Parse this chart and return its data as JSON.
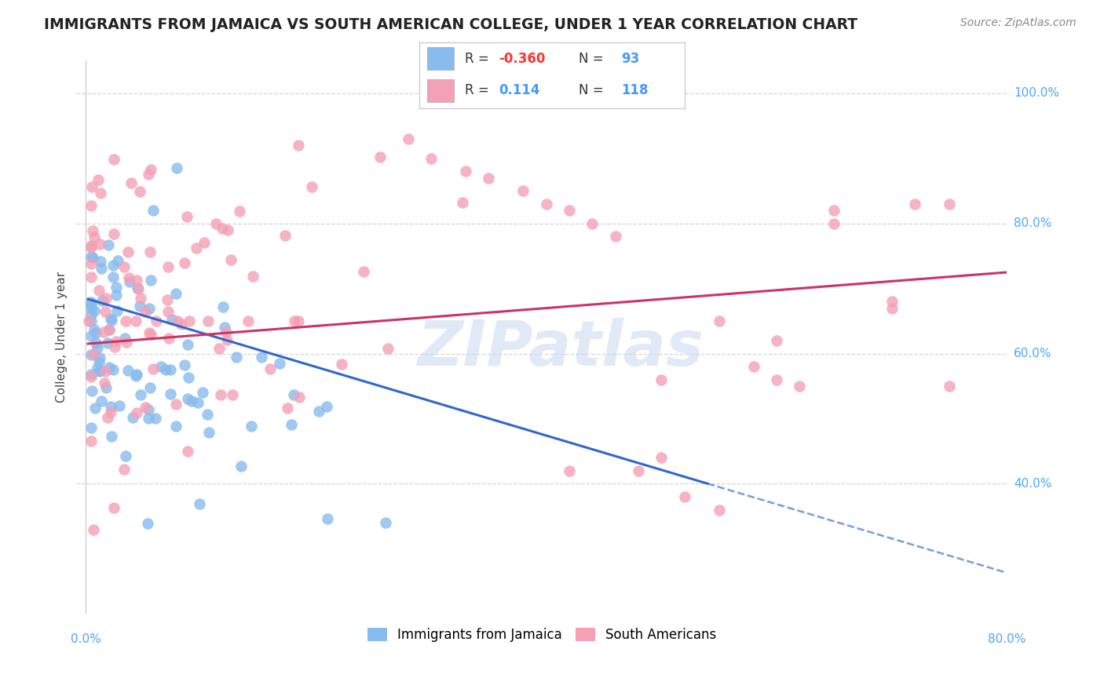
{
  "title": "IMMIGRANTS FROM JAMAICA VS SOUTH AMERICAN COLLEGE, UNDER 1 YEAR CORRELATION CHART",
  "source": "Source: ZipAtlas.com",
  "ylabel": "College, Under 1 year",
  "color_jamaica": "#88BBEE",
  "color_southam": "#F4A0B5",
  "color_title": "#222222",
  "color_source": "#888888",
  "color_ytick": "#4da6ff",
  "color_xtick": "#4da6ff",
  "color_grid": "#cccccc",
  "color_trend_j": "#3366CC",
  "color_trend_s": "#CC3366",
  "jamaica_R": -0.36,
  "jamaica_N": 93,
  "southam_R": 0.114,
  "southam_N": 118,
  "watermark": "ZIPatlas",
  "xlim_data": 0.8,
  "ylim_lo": 0.2,
  "ylim_hi": 1.05,
  "ytick_vals": [
    0.4,
    0.6,
    0.8,
    1.0
  ],
  "ytick_labels": [
    "40.0%",
    "60.0%",
    "80.0%",
    "100.0%"
  ],
  "xtick_vals": [
    0.0,
    0.8
  ],
  "xtick_labels": [
    "0.0%",
    "80.0%"
  ],
  "legend_row1_r": "-0.360",
  "legend_row1_n": "93",
  "legend_row2_r": "0.114",
  "legend_row2_n": "118",
  "jamaica_trend_x0": 0.0,
  "jamaica_trend_y0": 0.685,
  "jamaica_trend_x1": 0.55,
  "jamaica_trend_y1": 0.395,
  "southam_trend_x0": 0.0,
  "southam_trend_y0": 0.615,
  "southam_trend_x1": 0.8,
  "southam_trend_y1": 0.725
}
